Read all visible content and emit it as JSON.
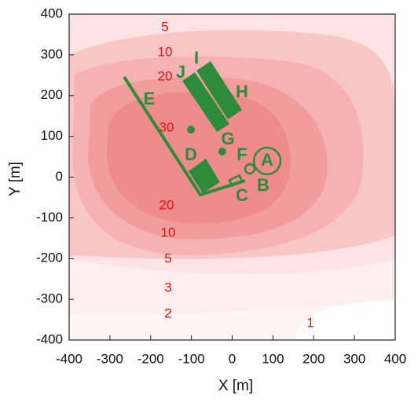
{
  "chart_data": {
    "type": "contour",
    "x_label": "X [m]",
    "y_label": "Y [m]",
    "xlim": [
      -400,
      400
    ],
    "ylim": [
      -400,
      400
    ],
    "xticks": [
      -400,
      -300,
      -200,
      -100,
      0,
      100,
      200,
      300,
      400
    ],
    "yticks": [
      -400,
      -300,
      -200,
      -100,
      0,
      100,
      200,
      300,
      400
    ],
    "contour_labels": [
      5,
      10,
      20,
      30,
      20,
      10,
      5,
      3,
      2,
      1
    ],
    "sites": [
      "A",
      "B",
      "C",
      "D",
      "E",
      "F",
      "G",
      "H",
      "I",
      "J"
    ],
    "label_color": "#e01010",
    "site_color": "#2e8b3a"
  }
}
